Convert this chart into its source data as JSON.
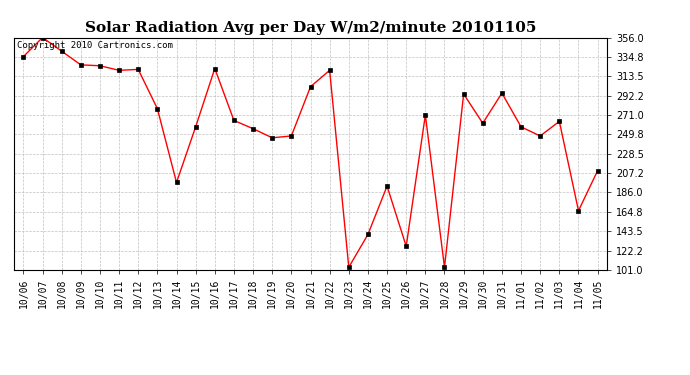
{
  "title": "Solar Radiation Avg per Day W/m2/minute 20101105",
  "copyright_text": "Copyright 2010 Cartronics.com",
  "dates": [
    "10/06",
    "10/07",
    "10/08",
    "10/09",
    "10/10",
    "10/11",
    "10/12",
    "10/13",
    "10/14",
    "10/15",
    "10/16",
    "10/17",
    "10/18",
    "10/19",
    "10/20",
    "10/21",
    "10/22",
    "10/23",
    "10/24",
    "10/25",
    "10/26",
    "10/27",
    "10/28",
    "10/29",
    "10/30",
    "10/31",
    "11/01",
    "11/02",
    "11/03",
    "11/04",
    "11/05"
  ],
  "values": [
    335.0,
    356.0,
    341.0,
    326.0,
    325.0,
    320.0,
    321.0,
    278.0,
    197.0,
    258.0,
    322.0,
    265.0,
    256.0,
    246.0,
    248.0,
    302.0,
    320.0,
    104.0,
    140.0,
    193.0,
    127.0,
    271.0,
    104.0,
    294.0,
    262.0,
    295.0,
    258.0,
    248.0,
    264.0,
    166.0,
    210.0
  ],
  "line_color": "#FF0000",
  "marker": "s",
  "marker_size": 2.5,
  "ylim": [
    101.0,
    356.0
  ],
  "yticks": [
    101.0,
    122.2,
    143.5,
    164.8,
    186.0,
    207.2,
    228.5,
    249.8,
    271.0,
    292.2,
    313.5,
    334.8,
    356.0
  ],
  "background_color": "#FFFFFF",
  "plot_bg_color": "#FFFFFF",
  "grid_color": "#BBBBBB",
  "title_fontsize": 11,
  "label_fontsize": 7,
  "copyright_fontsize": 6.5
}
